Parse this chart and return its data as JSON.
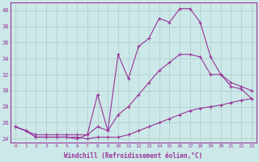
{
  "xlabel": "Windchill (Refroidissement éolien,°C)",
  "bg_color": "#cce8e8",
  "grid_color": "#aacccc",
  "line_color": "#993399",
  "xlim": [
    -0.5,
    23.5
  ],
  "ylim": [
    23.5,
    41.0
  ],
  "xticks": [
    0,
    1,
    2,
    3,
    4,
    5,
    6,
    7,
    8,
    9,
    10,
    11,
    12,
    13,
    14,
    15,
    16,
    17,
    18,
    19,
    20,
    21,
    22,
    23
  ],
  "yticks": [
    24,
    26,
    28,
    30,
    32,
    34,
    36,
    38,
    40
  ],
  "line1_x": [
    0,
    1,
    2,
    3,
    4,
    5,
    6,
    7,
    8,
    9,
    10,
    11,
    12,
    13,
    14,
    15,
    16,
    17,
    18,
    19,
    20,
    21,
    22,
    23
  ],
  "line1_y": [
    25.5,
    25.0,
    24.2,
    24.2,
    24.2,
    24.2,
    24.2,
    24.0,
    24.2,
    24.2,
    24.2,
    24.5,
    25.0,
    25.5,
    26.0,
    26.5,
    27.0,
    27.5,
    27.8,
    28.0,
    28.2,
    28.5,
    28.8,
    29.0
  ],
  "line2_x": [
    0,
    1,
    2,
    3,
    4,
    5,
    6,
    7,
    8,
    9,
    10,
    11,
    12,
    13,
    14,
    15,
    16,
    17,
    18,
    19,
    20,
    21,
    22,
    23
  ],
  "line2_y": [
    25.5,
    25.0,
    24.5,
    24.5,
    24.5,
    24.5,
    24.5,
    24.5,
    25.5,
    25.0,
    27.0,
    28.0,
    29.5,
    31.0,
    32.5,
    33.5,
    34.5,
    34.5,
    34.2,
    32.0,
    32.0,
    31.0,
    30.5,
    30.0
  ],
  "line3_x": [
    0,
    1,
    2,
    3,
    4,
    5,
    6,
    7,
    8,
    9,
    10,
    11,
    12,
    13,
    14,
    15,
    16,
    17,
    18,
    19,
    20,
    21,
    22,
    23
  ],
  "line3_y": [
    25.5,
    25.0,
    24.2,
    24.2,
    24.2,
    24.2,
    24.0,
    24.5,
    29.5,
    25.0,
    34.5,
    31.5,
    35.5,
    36.5,
    39.0,
    38.5,
    40.2,
    40.2,
    38.5,
    34.2,
    32.0,
    30.5,
    30.2,
    29.0
  ]
}
